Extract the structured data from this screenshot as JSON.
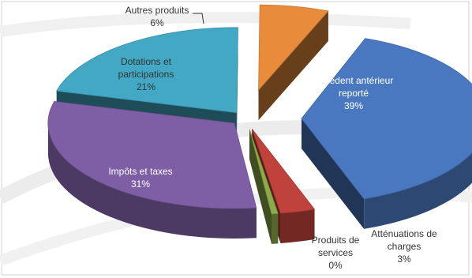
{
  "chart_data": {
    "type": "pie",
    "style": "3d-exploded",
    "categories": [
      "Excedent antérieur reporté",
      "Atténuations de charges",
      "Produits de services",
      "Impôts et taxes",
      "Dotations et participations",
      "Autres produits"
    ],
    "values": [
      39,
      3,
      0,
      31,
      21,
      6
    ],
    "value_labels": [
      "39%",
      "3%",
      "0%",
      "31%",
      "21%",
      "6%"
    ],
    "colors": [
      "#4a78c0",
      "#c0423c",
      "#8cac4a",
      "#7e5fa6",
      "#42a8c4",
      "#e88c3c"
    ],
    "label_lines": [
      [
        "Excedent antérieur",
        "reporté"
      ],
      [
        "Atténuations de",
        "charges"
      ],
      [
        "Produits de",
        "services"
      ],
      [
        "Impôts et taxes"
      ],
      [
        "Dotations et",
        "participations"
      ],
      [
        "Autres produits"
      ]
    ],
    "legend": "none"
  }
}
